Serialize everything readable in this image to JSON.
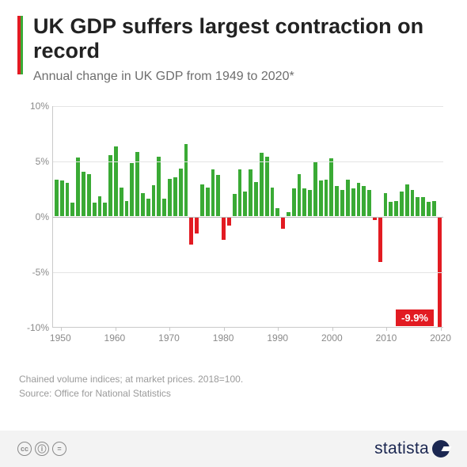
{
  "accent": {
    "red": "#e21b22",
    "green": "#3aaa35"
  },
  "title": "UK GDP suffers largest contraction on record",
  "subtitle": "Annual change in UK GDP from 1949 to 2020*",
  "chart": {
    "type": "bar",
    "ylim": [
      -10,
      10
    ],
    "yticks": [
      -10,
      -5,
      0,
      5,
      10
    ],
    "ytick_labels": [
      "-10%",
      "-5%",
      "0%",
      "5%",
      "10%"
    ],
    "xtick_years": [
      1950,
      1960,
      1970,
      1980,
      1990,
      2000,
      2010,
      2020
    ],
    "start_year": 1949,
    "end_year": 2020,
    "positive_color": "#3aaa35",
    "negative_color": "#e21b22",
    "grid_color": "#e4e4e4",
    "axis_color": "#c9c9c9",
    "zero_color": "#b9b9b9",
    "values": [
      3.3,
      3.2,
      3.0,
      1.2,
      5.3,
      4.0,
      3.8,
      1.2,
      1.8,
      1.2,
      5.5,
      6.3,
      2.6,
      1.4,
      4.8,
      5.8,
      2.1,
      1.6,
      2.8,
      5.4,
      1.6,
      3.4,
      3.5,
      4.3,
      6.5,
      -2.5,
      -1.5,
      2.9,
      2.6,
      4.2,
      3.7,
      -2.1,
      -0.8,
      2.0,
      4.2,
      2.2,
      4.2,
      3.1,
      5.7,
      5.4,
      2.6,
      0.7,
      -1.1,
      0.4,
      2.5,
      3.8,
      2.5,
      2.4,
      4.9,
      3.2,
      3.3,
      5.2,
      2.7,
      2.4,
      3.3,
      2.5,
      3.0,
      2.7,
      2.4,
      -0.3,
      -4.1,
      2.1,
      1.3,
      1.4,
      2.2,
      2.9,
      2.4,
      1.7,
      1.7,
      1.3,
      1.4,
      -9.9
    ],
    "callout": {
      "text": "-9.9%",
      "year": 2020
    }
  },
  "footnote_line1": "Chained volume indices; at market prices. 2018=100.",
  "footnote_line2": "Source: Office for National Statistics",
  "logo_text": "statista",
  "cc": [
    "cc",
    "i",
    "="
  ]
}
